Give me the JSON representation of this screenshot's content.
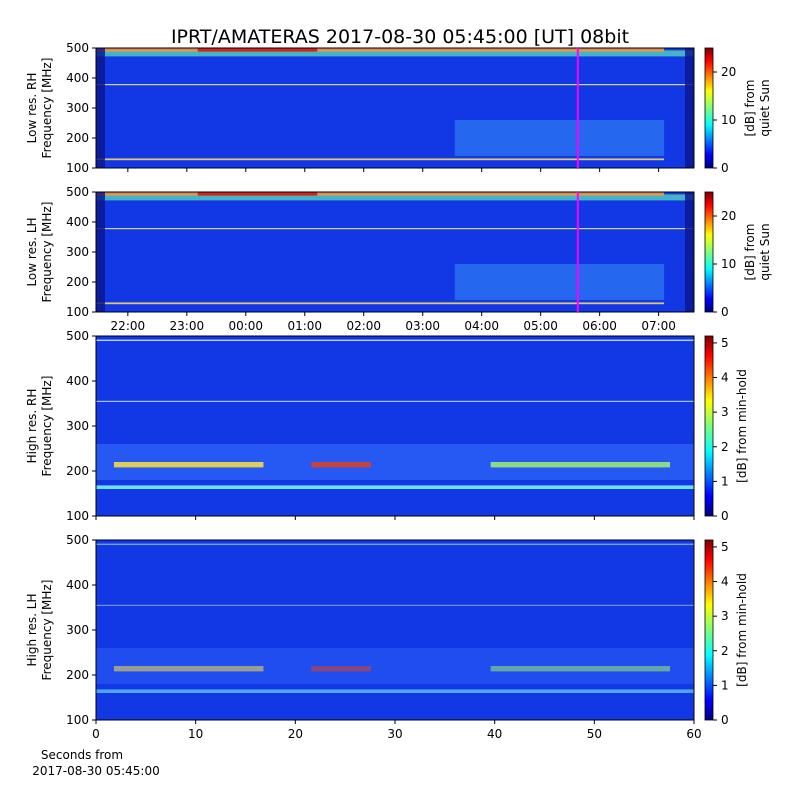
{
  "chart_data": [
    {
      "type": "heatmap",
      "title": "IPRT/AMATERAS 2017-08-30 05:45:00 [UT]   08bit",
      "ylabel": [
        "Low res. RH",
        "Frequency [MHz]"
      ],
      "xlim": [
        21.46,
        31.6
      ],
      "xticks": [
        22,
        23,
        24,
        25,
        26,
        27,
        28,
        29,
        30,
        31
      ],
      "xticklabels": false,
      "ylim": [
        100,
        500
      ],
      "yticks": [
        100,
        200,
        300,
        400,
        500
      ],
      "colormap": "jet",
      "clim": [
        0,
        25
      ],
      "cticks": [
        0,
        10,
        20
      ],
      "clabel": [
        "[dB] from",
        "quiet Sun"
      ],
      "marker": {
        "value": 29.63,
        "color": "#ff00ff"
      }
    },
    {
      "type": "heatmap",
      "ylabel": [
        "Low res. LH",
        "Frequency [MHz]"
      ],
      "xlim": [
        21.46,
        31.6
      ],
      "xticks": [
        {
          "value": 22,
          "label": "22:00"
        },
        {
          "value": 23,
          "label": "23:00"
        },
        {
          "value": 24,
          "label": "00:00"
        },
        {
          "value": 25,
          "label": "01:00"
        },
        {
          "value": 26,
          "label": "02:00"
        },
        {
          "value": 27,
          "label": "03:00"
        },
        {
          "value": 28,
          "label": "04:00"
        },
        {
          "value": 29,
          "label": "05:00"
        },
        {
          "value": 30,
          "label": "06:00"
        },
        {
          "value": 31,
          "label": "07:00"
        }
      ],
      "ylim": [
        100,
        500
      ],
      "yticks": [
        100,
        200,
        300,
        400,
        500
      ],
      "colormap": "jet",
      "clim": [
        0,
        25
      ],
      "cticks": [
        0,
        10,
        20
      ],
      "clabel": [
        "[dB] from",
        "quiet Sun"
      ],
      "marker": {
        "value": 29.63,
        "color": "#ff00ff"
      }
    },
    {
      "type": "heatmap",
      "ylabel": [
        "High res. RH",
        "Frequency [MHz]"
      ],
      "xlim": [
        0,
        60
      ],
      "xticks": [
        0,
        10,
        20,
        30,
        40,
        50,
        60
      ],
      "xticklabels": false,
      "ylim": [
        100,
        500
      ],
      "yticks": [
        100,
        200,
        300,
        400,
        500
      ],
      "colormap": "jet",
      "clim": [
        0,
        5.2
      ],
      "cticks": [
        0,
        1,
        2,
        3,
        4,
        5
      ],
      "clabel": [
        "[dB] from min-hold"
      ]
    },
    {
      "type": "heatmap",
      "ylabel": [
        "High res. LH",
        "Frequency [MHz]"
      ],
      "xlim": [
        0,
        60
      ],
      "xticks": [
        0,
        10,
        20,
        30,
        40,
        50,
        60
      ],
      "xlabel": [
        "Seconds from",
        "2017-08-30 05:45:00"
      ],
      "ylim": [
        100,
        500
      ],
      "yticks": [
        100,
        200,
        300,
        400,
        500
      ],
      "colormap": "jet",
      "clim": [
        0,
        5.2
      ],
      "cticks": [
        0,
        1,
        2,
        3,
        4,
        5
      ],
      "clabel": [
        "[dB] from min-hold"
      ]
    }
  ]
}
